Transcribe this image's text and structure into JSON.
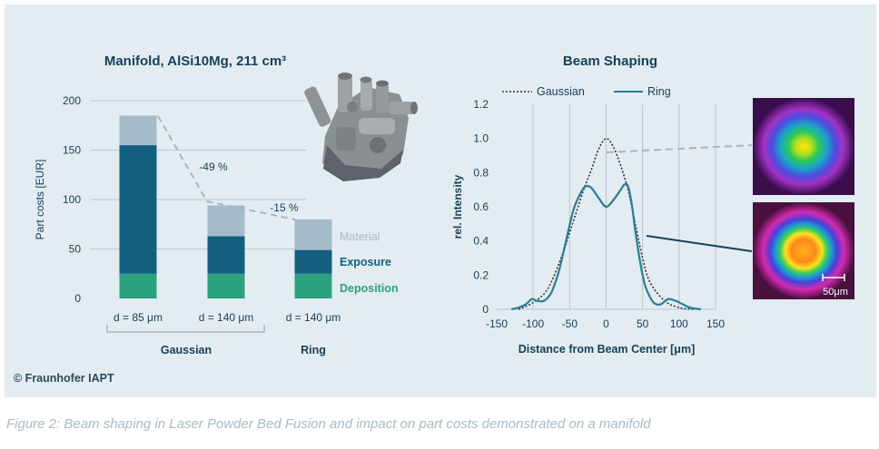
{
  "figure": {
    "copyright": "© Fraunhofer IAPT",
    "caption": "Figure 2: Beam shaping in Laser Powder Bed Fusion and impact on part costs demonstrated on a manifold"
  },
  "colors": {
    "panel_bg": "#e3ecf1",
    "material": "#a5bccb",
    "exposure": "#135f80",
    "deposition": "#2aa27e",
    "text_dark": "#19405a",
    "ring_line": "#2b7e94",
    "gaussian_line": "#333333",
    "grid": "#b6c7d1",
    "dash": "#a7b6c0"
  },
  "icons": {
    "manifold_image": "manifold-3d-render-image",
    "gaussian_beam_image": "gaussian-beam-profile-image",
    "ring_beam_image": "ring-beam-profile-image"
  },
  "chart_data": [
    {
      "type": "bar",
      "stacked": true,
      "title": "Manifold, AlSi10Mg, 211 cm³",
      "ylabel": "Part costs [EUR]",
      "xlabel": "",
      "ylim": [
        0,
        200
      ],
      "yticks": [
        0,
        50,
        100,
        150,
        200
      ],
      "grid": true,
      "categories": [
        "d = 85 μm",
        "d = 140 μm",
        "d = 140 μm"
      ],
      "groups": [
        {
          "label": "Gaussian",
          "categories": [
            0,
            1
          ]
        },
        {
          "label": "Ring",
          "categories": [
            2
          ]
        }
      ],
      "series": [
        {
          "name": "Deposition",
          "values": [
            25,
            25,
            25
          ]
        },
        {
          "name": "Exposure",
          "values": [
            130,
            38,
            24
          ]
        },
        {
          "name": "Material",
          "values": [
            30,
            31,
            31
          ]
        }
      ],
      "annotations": [
        "-49 %",
        "-15 %"
      ],
      "legend": "right"
    },
    {
      "type": "line",
      "title": "Beam Shaping",
      "xlabel": "Distance from Beam Center [μm]",
      "ylabel": "rel. Intensity",
      "xlim": [
        -150,
        150
      ],
      "ylim": [
        0,
        1.2
      ],
      "xticks": [
        -150,
        -100,
        -50,
        0,
        50,
        100,
        150
      ],
      "yticks": [
        "0",
        "0.2",
        "0.4",
        "0.6",
        "0.8",
        "1.0",
        "1.2"
      ],
      "grid": true,
      "legend": "top",
      "scale_bar_label": "50μm",
      "series": [
        {
          "name": "Gaussian",
          "style": "dotted",
          "x": [
            -120,
            -100,
            -80,
            -60,
            -50,
            -40,
            -30,
            -20,
            -10,
            0,
            10,
            20,
            30,
            40,
            50,
            60,
            80,
            100,
            120
          ],
          "y": [
            0.0,
            0.04,
            0.12,
            0.32,
            0.45,
            0.58,
            0.71,
            0.82,
            0.94,
            1.0,
            0.95,
            0.84,
            0.7,
            0.5,
            0.3,
            0.16,
            0.05,
            0.01,
            0.0
          ]
        },
        {
          "name": "Ring",
          "style": "solid",
          "x": [
            -130,
            -120,
            -110,
            -102,
            -95,
            -85,
            -75,
            -65,
            -55,
            -45,
            -35,
            -28,
            -20,
            -10,
            0,
            10,
            20,
            25,
            30,
            35,
            40,
            45,
            50,
            55,
            65,
            75,
            85,
            95,
            105,
            115,
            130
          ],
          "y": [
            0.0,
            0.01,
            0.03,
            0.06,
            0.05,
            0.05,
            0.1,
            0.22,
            0.4,
            0.58,
            0.68,
            0.72,
            0.71,
            0.65,
            0.6,
            0.64,
            0.7,
            0.73,
            0.72,
            0.62,
            0.46,
            0.32,
            0.2,
            0.12,
            0.04,
            0.03,
            0.06,
            0.05,
            0.03,
            0.01,
            0.0
          ]
        }
      ]
    }
  ]
}
